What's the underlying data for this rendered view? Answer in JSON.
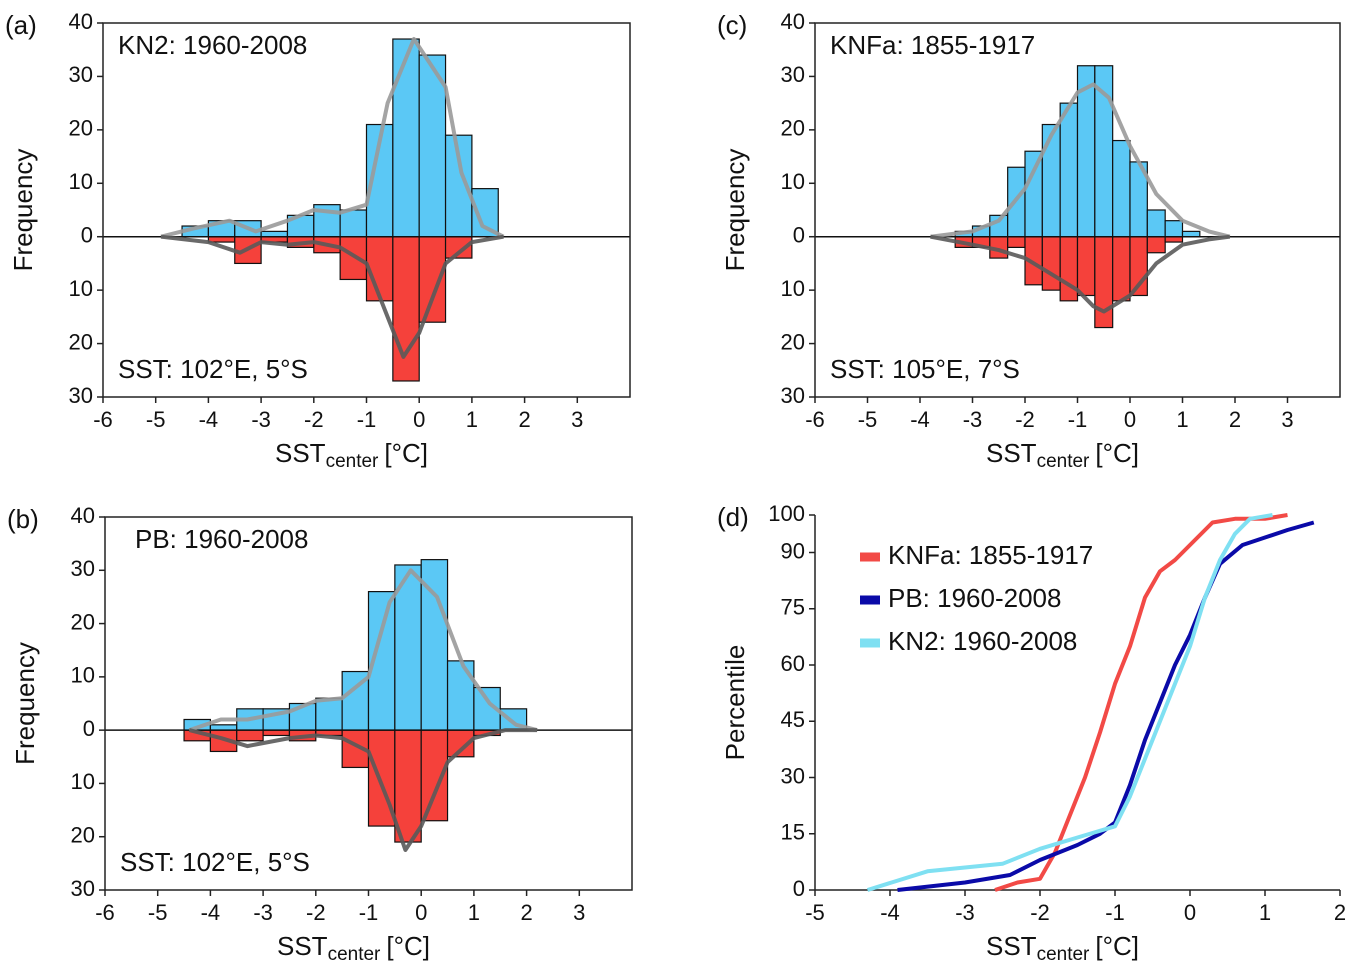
{
  "chart_data": [
    {
      "type": "mirrored_histogram",
      "panel_label": "(a)",
      "annotation_top": "KN2: 1960-2008",
      "annotation_bottom": "SST: 102°E, 5°S",
      "y_label": "Frequency",
      "x_label": "SST",
      "x_label_sub": "center",
      "x_label_unit": "[°C]",
      "xlim": [
        -6,
        4
      ],
      "xticks": [
        -6,
        -5,
        -4,
        -3,
        -2,
        -1,
        0,
        1,
        2,
        3
      ],
      "ylim": [
        -30,
        40
      ],
      "yticks": [
        {
          "value": -30,
          "label": "30"
        },
        {
          "value": -20,
          "label": "20"
        },
        {
          "value": -10,
          "label": "10"
        },
        0,
        10,
        20,
        30,
        40
      ],
      "bins": [
        -4.5,
        -4,
        -3.5,
        -3,
        -2.5,
        -2,
        -1.5,
        -1,
        -0.5,
        0,
        0.5,
        1,
        1.5
      ],
      "series": [
        {
          "color": "#5bc8f5",
          "values": [
            2,
            3,
            3,
            1,
            4,
            6,
            5,
            21,
            37,
            34,
            19,
            9
          ]
        },
        {
          "color": "#f5413b",
          "values": [
            0,
            -1,
            -5,
            -1,
            -2,
            -3,
            -8,
            -12,
            -27,
            -16,
            -4,
            0
          ]
        }
      ],
      "curves": [
        {
          "color": "#9a9a9a",
          "x": [
            -4.9,
            -4.3,
            -3.6,
            -3.1,
            -2.5,
            -2,
            -1.5,
            -1,
            -0.6,
            -0.1,
            0.5,
            0.8,
            1.2,
            1.6
          ],
          "values": [
            0,
            1.5,
            3,
            1,
            3,
            5,
            4.5,
            6,
            25,
            37,
            28,
            12,
            2,
            0
          ]
        },
        {
          "color": "#5a5a5a",
          "x": [
            -4.9,
            -4,
            -3.4,
            -3,
            -2.5,
            -2,
            -1.5,
            -1,
            -0.6,
            -0.3,
            0,
            0.5,
            1,
            1.6
          ],
          "values": [
            0,
            -1,
            -3,
            -1,
            -1.5,
            -1,
            -2,
            -5,
            -15,
            -22.5,
            -18,
            -5,
            -1,
            0
          ]
        }
      ]
    },
    {
      "type": "mirrored_histogram",
      "panel_label": "(b)",
      "annotation_top": "PB: 1960-2008",
      "annotation_bottom": "SST: 102°E, 5°S",
      "y_label": "Frequency",
      "x_label": "SST",
      "x_label_sub": "center",
      "x_label_unit": "[°C]",
      "xlim": [
        -6,
        4
      ],
      "xticks": [
        -6,
        -5,
        -4,
        -3,
        -2,
        -1,
        0,
        1,
        2,
        3
      ],
      "ylim": [
        -30,
        40
      ],
      "yticks": [
        {
          "value": -30,
          "label": "30"
        },
        {
          "value": -20,
          "label": "20"
        },
        {
          "value": -10,
          "label": "10"
        },
        0,
        10,
        20,
        30,
        40
      ],
      "bins": [
        -4.5,
        -4,
        -3.5,
        -3,
        -2.5,
        -2,
        -1.5,
        -1,
        -0.5,
        0,
        0.5,
        1,
        1.5,
        2
      ],
      "series": [
        {
          "color": "#5bc8f5",
          "values": [
            2,
            1,
            4,
            4,
            5,
            6,
            11,
            26,
            31,
            32,
            13,
            8,
            4
          ]
        },
        {
          "color": "#f5413b",
          "values": [
            -2,
            -4,
            -2,
            -1,
            -2,
            -1,
            -7,
            -18,
            -21,
            -17,
            -5,
            -1,
            0
          ]
        }
      ],
      "curves": [
        {
          "color": "#9a9a9a",
          "x": [
            -4.4,
            -3.8,
            -3.3,
            -2.5,
            -2,
            -1.5,
            -1,
            -0.6,
            -0.2,
            0.3,
            0.8,
            1.3,
            1.8,
            2.2
          ],
          "values": [
            0,
            2,
            2,
            3.5,
            5.5,
            6,
            10,
            24,
            30,
            25,
            12,
            5,
            1,
            0
          ]
        },
        {
          "color": "#5a5a5a",
          "x": [
            -4.4,
            -3.8,
            -3.3,
            -2.5,
            -2,
            -1.5,
            -1,
            -0.6,
            -0.3,
            0,
            0.5,
            1,
            1.6,
            2.2
          ],
          "values": [
            0,
            -1.5,
            -3,
            -1.5,
            -1,
            -1.5,
            -4,
            -14,
            -22.5,
            -18,
            -6,
            -1.5,
            0,
            0
          ]
        }
      ]
    },
    {
      "type": "mirrored_histogram",
      "panel_label": "(c)",
      "annotation_top": "KNFa: 1855-1917",
      "annotation_bottom": "SST: 105°E, 7°S",
      "y_label": "Frequency",
      "x_label": "SST",
      "x_label_sub": "center",
      "x_label_unit": "[°C]",
      "xlim": [
        -6,
        4
      ],
      "xticks": [
        -6,
        -5,
        -4,
        -3,
        -2,
        -1,
        0,
        1,
        2,
        3
      ],
      "ylim": [
        -30,
        40
      ],
      "yticks": [
        {
          "value": -30,
          "label": "30"
        },
        {
          "value": -20,
          "label": "20"
        },
        {
          "value": -10,
          "label": "10"
        },
        0,
        10,
        20,
        30,
        40
      ],
      "bins": [
        -3.33,
        -3,
        -2.67,
        -2.33,
        -2,
        -1.67,
        -1.33,
        -1,
        -0.67,
        -0.33,
        0,
        0.33,
        0.67,
        1,
        1.33
      ],
      "series": [
        {
          "color": "#5bc8f5",
          "values": [
            1,
            2,
            4,
            13,
            16,
            21,
            25,
            32,
            32,
            18,
            14,
            5,
            3,
            1
          ]
        },
        {
          "color": "#f5413b",
          "values": [
            -2,
            -2,
            -4,
            -2,
            -9,
            -10,
            -12,
            -11,
            -17,
            -12,
            -11,
            -3,
            -1,
            0
          ]
        }
      ],
      "curves": [
        {
          "color": "#9a9a9a",
          "x": [
            -3.8,
            -3,
            -2.5,
            -2,
            -1.5,
            -1,
            -0.7,
            -0.4,
            0,
            0.5,
            1,
            1.5,
            1.9
          ],
          "values": [
            0,
            1,
            3,
            9,
            19,
            27,
            28.5,
            26,
            17,
            8,
            3,
            1,
            0
          ]
        },
        {
          "color": "#5a5a5a",
          "x": [
            -3.8,
            -3,
            -2.5,
            -2,
            -1.5,
            -1,
            -0.7,
            -0.5,
            0,
            0.5,
            1,
            1.5,
            1.9
          ],
          "values": [
            0,
            -1.5,
            -2.5,
            -4,
            -7,
            -10,
            -13,
            -14,
            -11,
            -5,
            -1.5,
            -0.5,
            0
          ]
        }
      ]
    },
    {
      "type": "line",
      "panel_label": "(d)",
      "y_label": "Percentile",
      "x_label": "SST",
      "x_label_sub": "center",
      "x_label_unit": "[°C]",
      "xlim": [
        -5,
        2
      ],
      "xticks": [
        -5,
        -4,
        -3,
        -2,
        -1,
        0,
        1,
        2
      ],
      "ylim": [
        0,
        100
      ],
      "yticks": [
        0,
        15,
        30,
        45,
        60,
        75,
        90,
        100
      ],
      "legend": "upper-left",
      "series": [
        {
          "name": "KNFa: 1855-1917",
          "color": "#f24a46",
          "x": [
            -2.6,
            -2.3,
            -2,
            -1.8,
            -1.6,
            -1.4,
            -1.2,
            -1,
            -0.8,
            -0.6,
            -0.4,
            -0.2,
            0,
            0.3,
            0.6,
            1.0,
            1.3
          ],
          "values": [
            0,
            2,
            3,
            10,
            20,
            30,
            42,
            55,
            65,
            78,
            85,
            88,
            92,
            98,
            99,
            99,
            100
          ]
        },
        {
          "name": "PB: 1960-2008",
          "color": "#0a0aa8",
          "x": [
            -3.9,
            -3,
            -2.4,
            -2,
            -1.5,
            -1.2,
            -1,
            -0.8,
            -0.6,
            -0.4,
            -0.2,
            0,
            0.2,
            0.4,
            0.7,
            1.0,
            1.3,
            1.65
          ],
          "values": [
            0,
            2,
            4,
            8,
            12,
            15,
            18,
            28,
            40,
            50,
            60,
            68,
            78,
            87,
            92,
            94,
            96,
            98
          ]
        },
        {
          "name": "KN2: 1960-2008",
          "color": "#7fe0f2",
          "x": [
            -4.3,
            -3.5,
            -2.5,
            -2,
            -1.5,
            -1,
            -0.8,
            -0.6,
            -0.4,
            -0.2,
            0,
            0.2,
            0.4,
            0.6,
            0.8,
            1.1
          ],
          "values": [
            0,
            5,
            7,
            11,
            14,
            17,
            25,
            35,
            45,
            55,
            65,
            78,
            88,
            95,
            99,
            100
          ]
        }
      ]
    }
  ]
}
